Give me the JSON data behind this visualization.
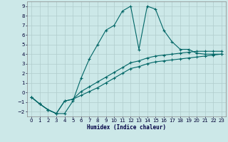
{
  "xlabel": "Humidex (Indice chaleur)",
  "ylabel": "",
  "background_color": "#cce8e8",
  "grid_color": "#b0cccc",
  "line_color": "#006666",
  "xlim": [
    -0.5,
    23.5
  ],
  "ylim": [
    -2.5,
    9.5
  ],
  "x_ticks": [
    0,
    1,
    2,
    3,
    4,
    5,
    6,
    7,
    8,
    9,
    10,
    11,
    12,
    13,
    14,
    15,
    16,
    17,
    18,
    19,
    20,
    21,
    22,
    23
  ],
  "y_ticks": [
    -2,
    -1,
    0,
    1,
    2,
    3,
    4,
    5,
    6,
    7,
    8,
    9
  ],
  "series1_x": [
    0,
    1,
    2,
    3,
    4,
    5,
    6,
    7,
    8,
    9,
    10,
    11,
    12,
    13,
    14,
    15,
    16,
    17,
    18,
    19,
    20,
    21,
    22,
    23
  ],
  "series1_y": [
    -0.5,
    -1.2,
    -1.8,
    -2.2,
    -2.2,
    -0.9,
    1.5,
    3.5,
    5.0,
    6.5,
    7.0,
    8.5,
    9.0,
    4.5,
    9.0,
    8.7,
    6.5,
    5.3,
    4.5,
    4.5,
    4.1,
    4.0,
    4.0,
    4.0
  ],
  "series2_x": [
    0,
    1,
    2,
    3,
    4,
    5,
    6,
    7,
    8,
    9,
    10,
    11,
    12,
    13,
    14,
    15,
    16,
    17,
    18,
    19,
    20,
    21,
    22,
    23
  ],
  "series2_y": [
    -0.5,
    -1.2,
    -1.8,
    -2.2,
    -0.9,
    -0.7,
    0.1,
    0.6,
    1.1,
    1.6,
    2.1,
    2.6,
    3.1,
    3.3,
    3.6,
    3.8,
    3.9,
    4.0,
    4.1,
    4.2,
    4.3,
    4.3,
    4.3,
    4.3
  ],
  "series3_x": [
    0,
    1,
    2,
    3,
    4,
    5,
    6,
    7,
    8,
    9,
    10,
    11,
    12,
    13,
    14,
    15,
    16,
    17,
    18,
    19,
    20,
    21,
    22,
    23
  ],
  "series3_y": [
    -0.5,
    -1.2,
    -1.8,
    -2.2,
    -0.9,
    -0.7,
    -0.3,
    0.1,
    0.5,
    1.0,
    1.5,
    2.0,
    2.5,
    2.7,
    3.0,
    3.2,
    3.3,
    3.4,
    3.5,
    3.6,
    3.7,
    3.8,
    3.9,
    4.0
  ]
}
